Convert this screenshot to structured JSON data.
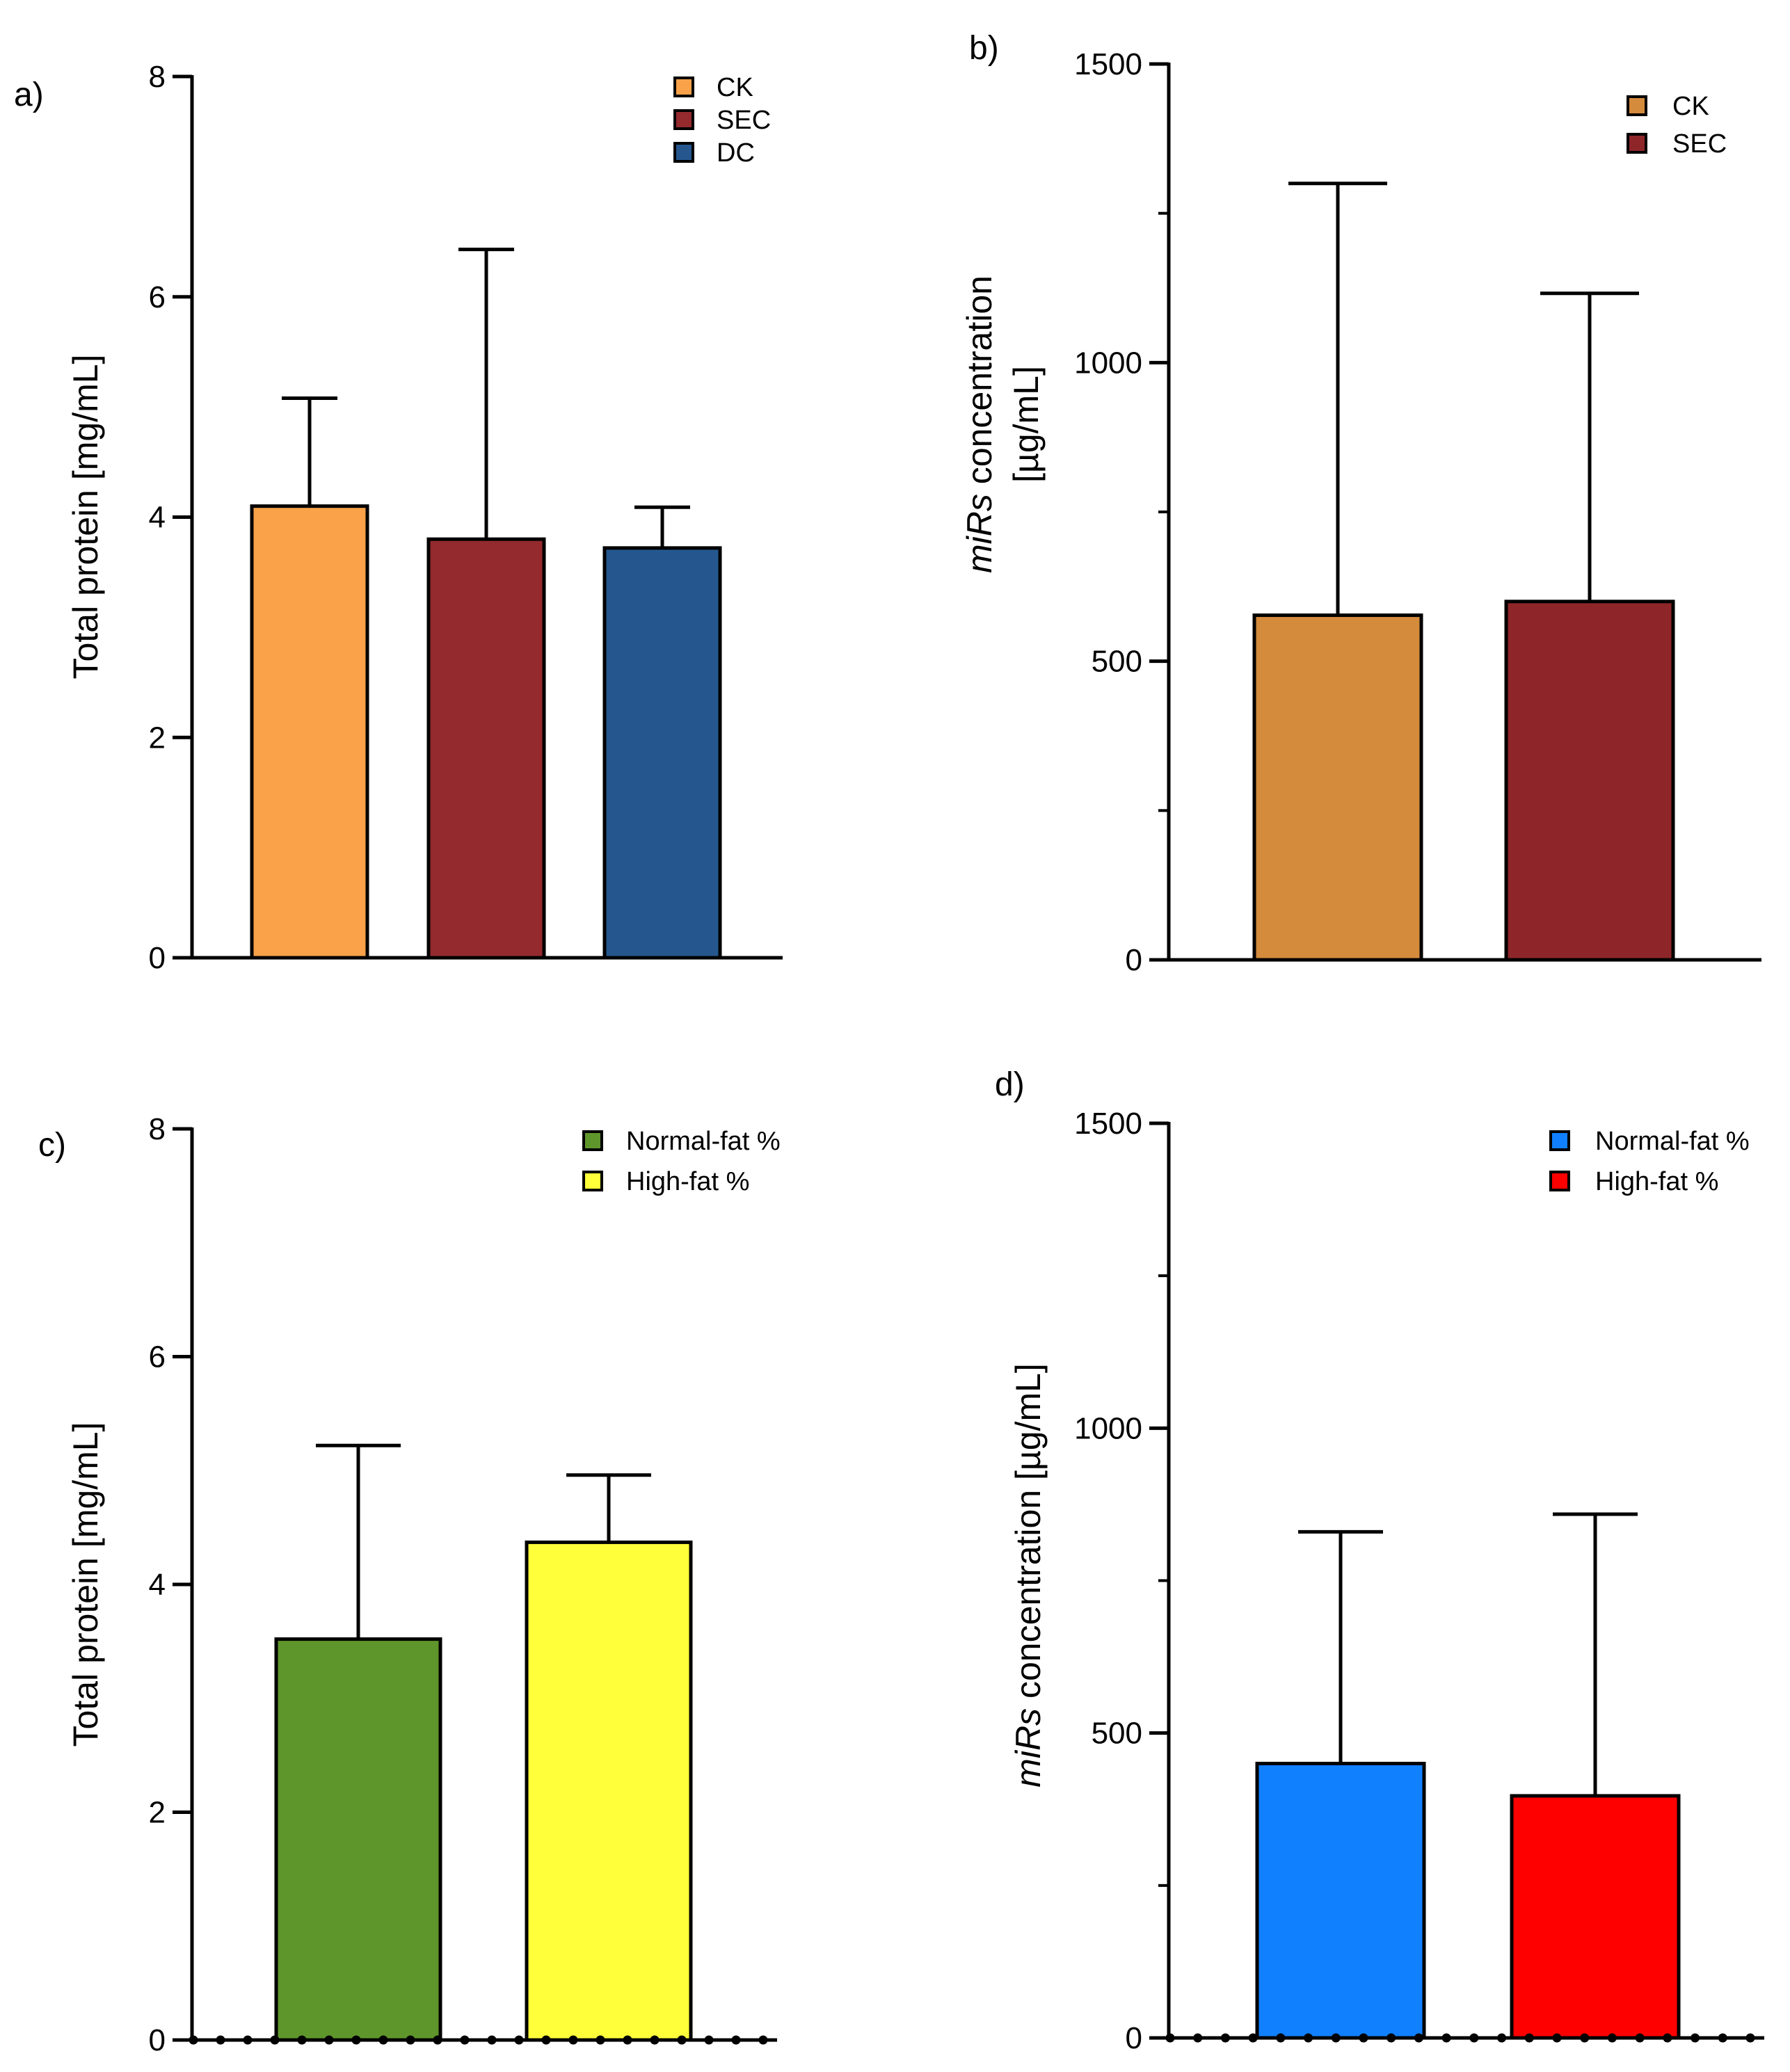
{
  "chart_data": [
    {
      "panel": "a)",
      "type": "bar",
      "title": "",
      "categories": [
        "CK",
        "SEC",
        "DC"
      ],
      "values": [
        4.1,
        3.8,
        3.72
      ],
      "errors": [
        0.98,
        2.63,
        0.37
      ],
      "colors": [
        "#F9A24A",
        "#942A2E",
        "#25578E"
      ],
      "legend": [
        "CK",
        "SEC",
        "DC"
      ],
      "legend_position": "top-right",
      "xlabel": "",
      "ylabel_parts": [
        {
          "text": "Total protein [mg/mL]",
          "italic": false
        }
      ],
      "ylim": [
        0,
        8
      ],
      "yticks": [
        0,
        2,
        4,
        6,
        8
      ],
      "ytick_labels": [
        "0",
        "2",
        "4",
        "6",
        "8"
      ],
      "minor_ticks": []
    },
    {
      "panel": "b)",
      "type": "bar",
      "title": "",
      "categories": [
        "CK",
        "SEC"
      ],
      "values": [
        577,
        600
      ],
      "errors": [
        723,
        516
      ],
      "colors": [
        "#D48B3C",
        "#8E2629"
      ],
      "legend": [
        "CK",
        "SEC"
      ],
      "legend_position": "top-right",
      "xlabel": "",
      "ylabel_parts": [
        {
          "text": "miRs",
          "italic": true
        },
        {
          "text": " concentration",
          "italic": false
        }
      ],
      "ylabel_line2": "[µg/mL]",
      "ylim": [
        0,
        1500
      ],
      "yticks": [
        0,
        500,
        1000,
        1500
      ],
      "ytick_labels": [
        "0",
        "500",
        "1000",
        "1500"
      ],
      "minor_ticks": [
        250,
        750,
        1250
      ]
    },
    {
      "panel": "c)",
      "type": "bar",
      "title": "",
      "categories": [
        "Normal-fat %",
        "High-fat %"
      ],
      "values": [
        3.52,
        4.37
      ],
      "errors": [
        1.7,
        0.59
      ],
      "colors": [
        "#5F962B",
        "#FFFF3A"
      ],
      "legend": [
        "Normal-fat %",
        "High-fat %"
      ],
      "legend_position": "top-right",
      "xlabel": "",
      "ylabel_parts": [
        {
          "text": "Total protein [mg/mL]",
          "italic": false
        }
      ],
      "ylim": [
        0,
        8
      ],
      "yticks": [
        0,
        2,
        4,
        6,
        8
      ],
      "ytick_labels": [
        "0",
        "2",
        "4",
        "6",
        "8"
      ],
      "minor_ticks": [],
      "baseline_dots": 22
    },
    {
      "panel": "d)",
      "type": "bar",
      "title": "",
      "categories": [
        "Normal-fat %",
        "High-fat %"
      ],
      "values": [
        450,
        397
      ],
      "errors": [
        380,
        462
      ],
      "colors": [
        "#1180FE",
        "#FE0000"
      ],
      "legend": [
        "Normal-fat %",
        "High-fat %"
      ],
      "legend_position": "top-right",
      "xlabel": "",
      "ylabel_parts": [
        {
          "text": "miRs",
          "italic": true
        },
        {
          "text": " concentration [µg/mL]",
          "italic": false
        }
      ],
      "ylim": [
        0,
        1500
      ],
      "yticks": [
        0,
        500,
        1000,
        1500
      ],
      "ytick_labels": [
        "0",
        "500",
        "1000",
        "1500"
      ],
      "minor_ticks": [
        250,
        750,
        1250
      ],
      "baseline_dots": 22
    }
  ]
}
